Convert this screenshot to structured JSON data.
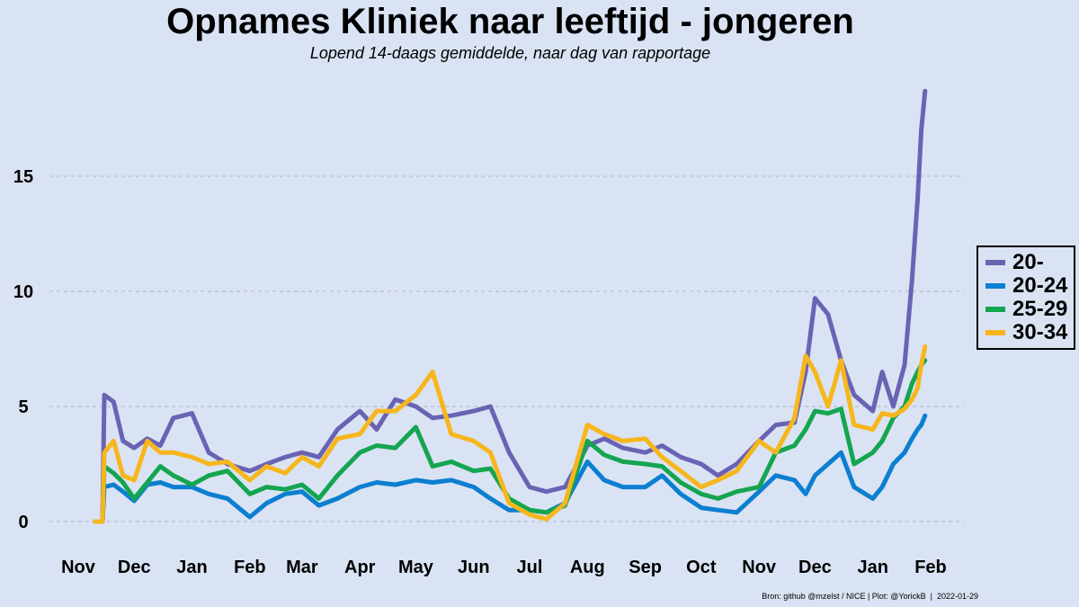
{
  "chart_data": {
    "type": "line",
    "title": "Opnames Kliniek naar leeftijd - jongeren",
    "subtitle": "Lopend 14-daags gemiddelde, naar dag van rapportage",
    "xlabel": "",
    "ylabel": "",
    "ylim": [
      -1.5,
      19.5
    ],
    "yticks": [
      0,
      5,
      10,
      15
    ],
    "grid": "horizontal-dashed",
    "legend_position": "right",
    "x_tick_labels": [
      "Nov",
      "Dec",
      "Jan",
      "Feb",
      "Mar",
      "Apr",
      "May",
      "Jun",
      "Jul",
      "Aug",
      "Sep",
      "Oct",
      "Nov",
      "Dec",
      "Jan",
      "Feb"
    ],
    "x_ticks": [
      "2020-11-01",
      "2020-12-01",
      "2021-01-01",
      "2021-02-01",
      "2021-03-01",
      "2021-04-01",
      "2021-05-01",
      "2021-06-01",
      "2021-07-01",
      "2021-08-01",
      "2021-09-01",
      "2021-10-01",
      "2021-11-01",
      "2021-12-01",
      "2022-01-01",
      "2022-02-01"
    ],
    "xlim": [
      "2020-11-01",
      "2022-02-01"
    ],
    "x": [
      "2020-11-10",
      "2020-11-14",
      "2020-11-15",
      "2020-11-20",
      "2020-11-25",
      "2020-12-01",
      "2020-12-08",
      "2020-12-15",
      "2020-12-22",
      "2021-01-01",
      "2021-01-10",
      "2021-01-20",
      "2021-02-01",
      "2021-02-10",
      "2021-02-20",
      "2021-03-01",
      "2021-03-10",
      "2021-03-20",
      "2021-04-01",
      "2021-04-10",
      "2021-04-20",
      "2021-05-01",
      "2021-05-10",
      "2021-05-20",
      "2021-06-01",
      "2021-06-10",
      "2021-06-20",
      "2021-07-01",
      "2021-07-10",
      "2021-07-20",
      "2021-08-01",
      "2021-08-10",
      "2021-08-20",
      "2021-09-01",
      "2021-09-10",
      "2021-09-20",
      "2021-10-01",
      "2021-10-10",
      "2021-10-20",
      "2021-11-01",
      "2021-11-10",
      "2021-11-20",
      "2021-11-26",
      "2021-12-01",
      "2021-12-08",
      "2021-12-15",
      "2021-12-22",
      "2022-01-01",
      "2022-01-06",
      "2022-01-12",
      "2022-01-18",
      "2022-01-22",
      "2022-01-25",
      "2022-01-27",
      "2022-01-29"
    ],
    "series": [
      {
        "name": "20-",
        "color": "#6a63b4",
        "values": [
          0.0,
          0.0,
          5.5,
          5.2,
          3.5,
          3.2,
          3.6,
          3.3,
          4.5,
          4.7,
          3.0,
          2.5,
          2.2,
          2.5,
          2.8,
          3.0,
          2.8,
          4.0,
          4.8,
          4.0,
          5.3,
          5.0,
          4.5,
          4.6,
          4.8,
          5.0,
          3.0,
          1.5,
          1.3,
          1.5,
          3.3,
          3.6,
          3.2,
          3.0,
          3.3,
          2.8,
          2.5,
          2.0,
          2.5,
          3.5,
          4.2,
          4.3,
          6.5,
          9.7,
          9.0,
          7.0,
          5.5,
          4.8,
          6.5,
          5.0,
          6.8,
          10.5,
          14.0,
          17.0,
          18.7
        ]
      },
      {
        "name": "20-24",
        "color": "#0c7fd0",
        "values": [
          0.0,
          0.0,
          1.5,
          1.6,
          1.3,
          0.9,
          1.6,
          1.7,
          1.5,
          1.5,
          1.2,
          1.0,
          0.2,
          0.8,
          1.2,
          1.3,
          0.7,
          1.0,
          1.5,
          1.7,
          1.6,
          1.8,
          1.7,
          1.8,
          1.5,
          1.0,
          0.5,
          0.5,
          0.4,
          0.8,
          2.6,
          1.8,
          1.5,
          1.5,
          2.0,
          1.2,
          0.6,
          0.5,
          0.4,
          1.3,
          2.0,
          1.8,
          1.2,
          2.0,
          2.5,
          3.0,
          1.5,
          1.0,
          1.5,
          2.5,
          3.0,
          3.6,
          4.0,
          4.2,
          4.6
        ]
      },
      {
        "name": "25-29",
        "color": "#14a550",
        "values": [
          0.0,
          0.0,
          2.4,
          2.1,
          1.7,
          1.0,
          1.7,
          2.4,
          2.0,
          1.6,
          2.0,
          2.2,
          1.2,
          1.5,
          1.4,
          1.6,
          1.0,
          2.0,
          3.0,
          3.3,
          3.2,
          4.1,
          2.4,
          2.6,
          2.2,
          2.3,
          1.0,
          0.5,
          0.4,
          0.7,
          3.5,
          2.9,
          2.6,
          2.5,
          2.4,
          1.7,
          1.2,
          1.0,
          1.3,
          1.5,
          3.0,
          3.3,
          4.0,
          4.8,
          4.7,
          4.9,
          2.5,
          3.0,
          3.5,
          4.5,
          5.0,
          6.0,
          6.5,
          6.8,
          7.0
        ]
      },
      {
        "name": "30-34",
        "color": "#f6b61c",
        "values": [
          0.0,
          0.0,
          3.0,
          3.5,
          2.0,
          1.8,
          3.5,
          3.0,
          3.0,
          2.8,
          2.5,
          2.6,
          1.8,
          2.4,
          2.1,
          2.8,
          2.4,
          3.6,
          3.8,
          4.8,
          4.8,
          5.5,
          6.5,
          3.8,
          3.5,
          3.0,
          0.8,
          0.3,
          0.1,
          0.8,
          4.2,
          3.8,
          3.5,
          3.6,
          2.8,
          2.2,
          1.5,
          1.8,
          2.2,
          3.5,
          3.0,
          4.5,
          7.2,
          6.5,
          5.0,
          7.0,
          4.2,
          4.0,
          4.7,
          4.6,
          4.9,
          5.3,
          5.8,
          6.8,
          7.6
        ]
      }
    ],
    "source_note": "Bron: github @mzelst / NICE | Plot: @YorickB  |  2022-01-29"
  }
}
